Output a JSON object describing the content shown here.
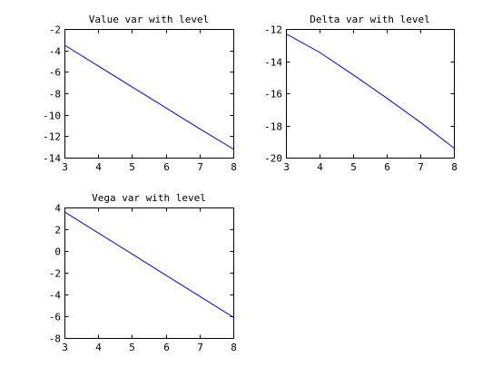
{
  "colors": {
    "line": "#0000ff",
    "axis": "#000000",
    "background": "#ffffff"
  },
  "chart_data": [
    {
      "type": "line",
      "title": "Value var with level",
      "xlabel": "",
      "ylabel": "",
      "xlim": [
        3,
        8
      ],
      "ylim": [
        -14,
        -2
      ],
      "xticks": [
        3,
        4,
        5,
        6,
        7,
        8
      ],
      "yticks": [
        -14,
        -12,
        -10,
        -8,
        -6,
        -4,
        -2
      ],
      "grid": false,
      "series": [
        {
          "x": [
            3,
            4,
            5,
            6,
            7,
            8
          ],
          "y": [
            -3.5,
            -5.45,
            -7.4,
            -9.35,
            -11.3,
            -13.2
          ]
        }
      ]
    },
    {
      "type": "line",
      "title": "Delta var with level",
      "xlabel": "",
      "ylabel": "",
      "xlim": [
        3,
        8
      ],
      "ylim": [
        -20,
        -12
      ],
      "xticks": [
        3,
        4,
        5,
        6,
        7,
        8
      ],
      "yticks": [
        -20,
        -18,
        -16,
        -14,
        -12
      ],
      "grid": false,
      "series": [
        {
          "x": [
            3,
            4,
            5,
            6,
            7,
            8
          ],
          "y": [
            -12.3,
            -13.45,
            -14.85,
            -16.3,
            -17.8,
            -19.4
          ]
        }
      ]
    },
    {
      "type": "line",
      "title": "Vega var with level",
      "xlabel": "",
      "ylabel": "",
      "xlim": [
        3,
        8
      ],
      "ylim": [
        -8,
        4
      ],
      "xticks": [
        3,
        4,
        5,
        6,
        7,
        8
      ],
      "yticks": [
        -8,
        -6,
        -4,
        -2,
        0,
        2,
        4
      ],
      "grid": false,
      "series": [
        {
          "x": [
            3,
            4,
            5,
            6,
            7,
            8
          ],
          "y": [
            3.6,
            1.66,
            -0.28,
            -2.22,
            -4.16,
            -6.1
          ]
        }
      ]
    }
  ]
}
